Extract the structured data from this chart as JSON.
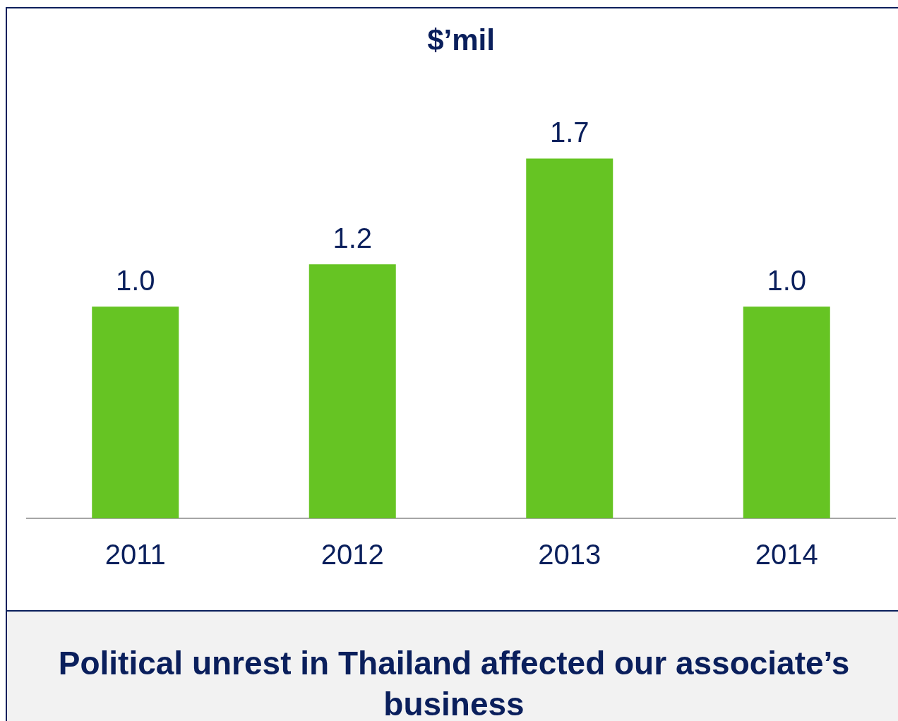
{
  "chart_data": {
    "type": "bar",
    "title": "$’mil",
    "categories": [
      "2011",
      "2012",
      "2013",
      "2014"
    ],
    "values": [
      1.0,
      1.2,
      1.7,
      1.0
    ],
    "color": "#66c423",
    "value_labels": [
      "1.0",
      "1.2",
      "1.7",
      "1.0"
    ],
    "grid": false,
    "legend": false,
    "tick_labels": "x",
    "annotations": [
      "Political unrest in Thailand affected our associate’s business"
    ]
  }
}
